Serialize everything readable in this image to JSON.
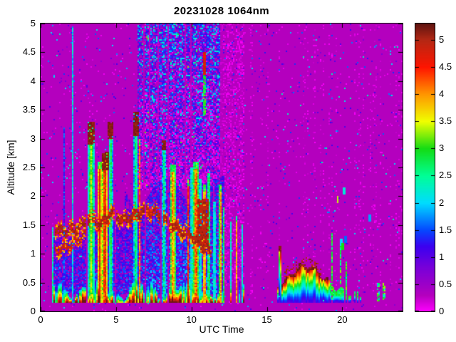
{
  "figure": {
    "background_color": "#ffffff"
  },
  "chart_data": {
    "type": "heatmap",
    "title": "20231028 1064nm",
    "xlabel": "UTC Time",
    "ylabel": "Altitude [km]",
    "xlim": [
      0,
      24
    ],
    "ylim": [
      0,
      5
    ],
    "xticks": [
      0,
      5,
      10,
      15,
      20
    ],
    "yticks": [
      0,
      0.5,
      1,
      1.5,
      2,
      2.5,
      3,
      3.5,
      4,
      4.5,
      5
    ],
    "grid": false,
    "legend": "none",
    "colorbar": {
      "position": "right",
      "vmin": 0,
      "vmax": 5.3,
      "ticks": [
        0,
        0.5,
        1,
        1.5,
        2,
        2.5,
        3,
        3.5,
        4,
        4.5,
        5
      ],
      "colormap": [
        [
          0.0,
          "#ff00ff"
        ],
        [
          0.3,
          "#b400be"
        ],
        [
          0.8,
          "#7a00d8"
        ],
        [
          1.2,
          "#3c00f0"
        ],
        [
          1.5,
          "#0548ff"
        ],
        [
          2.0,
          "#00dcff"
        ],
        [
          2.5,
          "#00ff96"
        ],
        [
          3.0,
          "#14dc14"
        ],
        [
          3.5,
          "#f0ff00"
        ],
        [
          4.0,
          "#ff9600"
        ],
        [
          4.5,
          "#ff1400"
        ],
        [
          5.0,
          "#b42814"
        ],
        [
          5.3,
          "#5f1410"
        ]
      ]
    },
    "background_value": 0.3,
    "features": {
      "surface_layer": {
        "t": [
          0.85,
          12.2
        ],
        "sparse_until": 13.5,
        "base_km": 0.14,
        "value_bottom": 4.9,
        "value_top": 1.5
      },
      "haze": {
        "t": [
          1.0,
          12.2
        ],
        "top_km": 2.35,
        "value_range": [
          0.75,
          2.1
        ]
      },
      "aerosol_band_main": {
        "thickness_km": 0.15,
        "value": 5.15,
        "path": [
          [
            0.9,
            1.42
          ],
          [
            1.7,
            1.38
          ],
          [
            2.5,
            1.45
          ],
          [
            3.3,
            1.62
          ],
          [
            4.0,
            1.5
          ],
          [
            4.7,
            1.72
          ],
          [
            5.4,
            1.58
          ],
          [
            6.1,
            1.65
          ],
          [
            6.9,
            1.75
          ],
          [
            7.6,
            1.72
          ],
          [
            8.4,
            1.55
          ],
          [
            9.2,
            1.42
          ],
          [
            10.0,
            1.3
          ],
          [
            10.7,
            1.15
          ],
          [
            11.35,
            1.0
          ]
        ]
      },
      "aerosol_band_secondary": {
        "thickness_km": 0.1,
        "value": 5.0,
        "path": [
          [
            0.9,
            1.05
          ],
          [
            1.6,
            1.1
          ],
          [
            2.3,
            1.2
          ],
          [
            3.0,
            1.35
          ]
        ]
      },
      "plumes": [
        {
          "t": [
            0.52,
            0.58
          ],
          "top": 1.5,
          "value": 4.4
        },
        {
          "t": [
            0.63,
            0.69
          ],
          "top": 1.3,
          "value": 2.2
        },
        {
          "t": [
            0.76,
            0.83
          ],
          "top": 1.45,
          "value": 2.6
        },
        {
          "t": [
            1.55,
            1.62
          ],
          "top": 3.2,
          "value": 2.0
        },
        {
          "t": [
            2.08,
            2.16
          ],
          "top": 4.95,
          "value": 2.2
        },
        {
          "t": [
            3.15,
            3.55
          ],
          "top": 3.3,
          "value": 3.4,
          "cap": [
            2.9,
            3.3
          ]
        },
        {
          "t": [
            3.75,
            4.08
          ],
          "top": 2.6,
          "value": 4.8
        },
        {
          "t": [
            4.08,
            4.45
          ],
          "top": 2.75,
          "value": 5.0,
          "cap": [
            2.45,
            2.78
          ]
        },
        {
          "t": [
            4.52,
            4.78
          ],
          "top": 3.25,
          "value": 3.0,
          "cap": [
            3.0,
            3.28
          ]
        },
        {
          "t": [
            6.18,
            6.44
          ],
          "top": 3.45,
          "value": 2.9,
          "cap": [
            3.05,
            3.47
          ]
        },
        {
          "t": [
            6.48,
            6.62
          ],
          "top": 3.0,
          "value": 4.6
        },
        {
          "t": [
            8.05,
            8.3
          ],
          "top": 2.95,
          "value": 2.6,
          "cap": [
            2.8,
            2.97
          ]
        },
        {
          "t": [
            8.6,
            8.95
          ],
          "top": 2.55,
          "value": 4.4
        },
        {
          "t": [
            9.7,
            9.85
          ],
          "top": 2.3,
          "value": 4.6
        },
        {
          "t": [
            9.95,
            10.1
          ],
          "top": 2.5,
          "value": 3.0
        },
        {
          "t": [
            10.15,
            10.45
          ],
          "top": 2.6,
          "value": 4.8
        },
        {
          "t": [
            10.5,
            10.7
          ],
          "top": 2.3,
          "value": 2.6
        },
        {
          "t": [
            10.75,
            11.0
          ],
          "top": 2.2,
          "value": 4.5
        },
        {
          "t": [
            11.05,
            11.25
          ],
          "top": 2.4,
          "value": 3.2
        },
        {
          "t": [
            11.45,
            11.6
          ],
          "top": 1.9,
          "value": 2.8
        },
        {
          "t": [
            11.85,
            12.0
          ],
          "top": 2.2,
          "value": 4.6
        },
        {
          "t": [
            12.05,
            12.2
          ],
          "top": 1.8,
          "value": 3.0
        },
        {
          "t": [
            12.55,
            12.65
          ],
          "top": 1.55,
          "value": 2.6
        },
        {
          "t": [
            12.95,
            13.05
          ],
          "top": 1.65,
          "value": 4.2
        },
        {
          "t": [
            13.35,
            13.45
          ],
          "top": 1.5,
          "value": 2.8
        }
      ],
      "brown_mass": {
        "t": [
          10.4,
          11.15
        ],
        "alt": [
          1.15,
          1.95
        ],
        "value": 5.15
      },
      "high_blob": {
        "t": [
          10.8,
          10.95
        ],
        "alt": [
          4.1,
          4.5
        ],
        "value": 5.0,
        "streak_to": 3.4
      },
      "noise_dense": {
        "t": [
          6.4,
          12.1
        ],
        "alt": [
          2.1,
          5.0
        ]
      },
      "noise_magenta": {
        "t": [
          12.1,
          13.5
        ],
        "alt": [
          0.45,
          5.0
        ]
      },
      "evening_layer": {
        "t": [
          15.7,
          21.3
        ],
        "peak_t": 17.6,
        "peak_top_km": 0.8,
        "base_km": 0.16,
        "onset_spike": {
          "t": [
            15.75,
            15.95
          ],
          "top": 1.15
        },
        "decay_after_t": 19.2,
        "spikes": [
          [
            19.35,
            1.35
          ],
          [
            19.9,
            1.15
          ],
          [
            20.3,
            0.9
          ]
        ],
        "patches_t": [
          22.3,
          22.9
        ]
      },
      "dots": [
        [
          20.1,
          2.1,
          2.2
        ],
        [
          19.7,
          1.95,
          3.4
        ],
        [
          21.8,
          1.62,
          1.8
        ],
        [
          19.9,
          1.2,
          2.0
        ],
        [
          20.05,
          1.12,
          3.0
        ],
        [
          20.2,
          1.25,
          1.6
        ]
      ]
    }
  }
}
